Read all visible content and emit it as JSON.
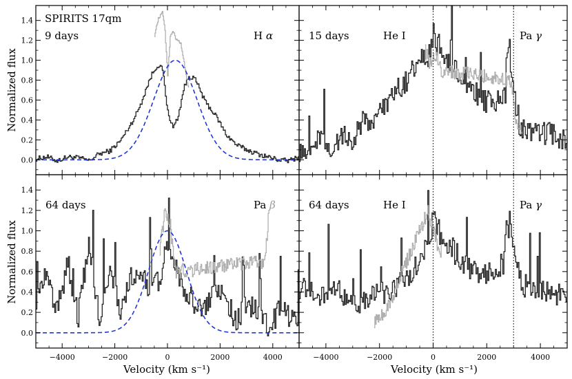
{
  "chart_data": {
    "type": "line",
    "title": "SPIRITS 17qm",
    "xlabel": "Velocity (km s⁻¹)",
    "ylabel": "Normalized flux",
    "xlim": [
      -5000,
      5000
    ],
    "ylim": [
      -0.15,
      1.55
    ],
    "xticks": [
      -4000,
      -2000,
      0,
      2000,
      4000
    ],
    "xtick_labels": [
      "−4000",
      "−2000",
      "0",
      "2000",
      "4000"
    ],
    "yticks": [
      0.0,
      0.2,
      0.4,
      0.6,
      0.8,
      1.0,
      1.2,
      1.4
    ],
    "ytick_labels": [
      "0.0",
      "0.2",
      "0.4",
      "0.6",
      "0.8",
      "1.0",
      "1.2",
      "1.4"
    ],
    "colors": {
      "spectrum": "#222222",
      "masked": "#b0b0b0",
      "fit": "#1f35d6"
    },
    "panels": [
      {
        "id": "top-left",
        "epoch": "9 days",
        "line": "H",
        "line_greek": "α",
        "line_greek_color": "#000000",
        "show_title": true,
        "fit": {
          "amplitude": 1.0,
          "center": 300,
          "sigma": 820
        },
        "markers": [],
        "spectrum": {
          "x": [
            -5000,
            -4600,
            -4200,
            -3800,
            -3400,
            -3000,
            -2600,
            -2200,
            -1800,
            -1400,
            -1200,
            -1000,
            -800,
            -600,
            -400,
            -200,
            0,
            200,
            400,
            600,
            800,
            1000,
            1200,
            1400,
            1600,
            1800,
            2000,
            2200,
            2600,
            3000,
            3400,
            3800,
            4200,
            4600,
            5000
          ],
          "y": [
            0.01,
            0.03,
            -0.01,
            0.03,
            0.02,
            -0.01,
            0.06,
            0.09,
            0.19,
            0.36,
            0.46,
            0.58,
            0.73,
            0.86,
            0.95,
            0.91,
            0.48,
            0.32,
            0.44,
            0.71,
            0.84,
            0.82,
            0.72,
            0.59,
            0.52,
            0.45,
            0.36,
            0.26,
            0.15,
            0.1,
            0.06,
            0.03,
            0.0,
            -0.01,
            0.03
          ]
        },
        "masked": {
          "x": [
            -500,
            -350,
            -200,
            -100,
            0,
            100,
            200,
            300,
            400,
            500,
            600,
            700,
            800
          ],
          "y": [
            1.25,
            1.42,
            1.48,
            1.3,
            0.85,
            1.24,
            1.3,
            1.22,
            1.2,
            1.17,
            1.02,
            0.85,
            0.72
          ]
        }
      },
      {
        "id": "top-right",
        "epoch": "15 days",
        "line": "He I",
        "line_greek": "",
        "show_title": false,
        "second_line": "Pa",
        "second_greek": "γ",
        "fit": null,
        "markers": [
          0,
          3000
        ],
        "spectrum": {
          "x": [
            -5000,
            -4600,
            -4200,
            -3800,
            -3400,
            -3000,
            -2600,
            -2200,
            -1800,
            -1400,
            -1000,
            -600,
            -200,
            0,
            200,
            600,
            1000,
            1400,
            1800,
            2200,
            2600,
            2800,
            3000,
            3200,
            3600,
            4000,
            4400,
            4800,
            5000
          ],
          "y": [
            0.1,
            0.15,
            0.22,
            0.12,
            0.25,
            0.18,
            0.4,
            0.38,
            0.55,
            0.7,
            0.8,
            0.95,
            1.05,
            1.2,
            1.15,
            1.0,
            0.85,
            0.7,
            0.62,
            0.55,
            0.62,
            1.2,
            0.7,
            0.35,
            0.3,
            0.28,
            0.25,
            0.22,
            0.2
          ]
        },
        "masked": {
          "x": [
            -300,
            -100,
            100,
            300,
            2900,
            3100,
            3300
          ],
          "y": [
            1.1,
            0.95,
            1.05,
            0.9,
            0.8,
            0.35,
            0.28
          ]
        }
      },
      {
        "id": "bottom-left",
        "epoch": "64 days",
        "line": "Pa",
        "line_greek": "β",
        "line_greek_color": "#9a9a9a",
        "show_title": false,
        "fit": {
          "amplitude": 1.0,
          "center": 0,
          "sigma": 720
        },
        "markers": [],
        "spectrum": {
          "x": [
            -5000,
            -4600,
            -4200,
            -3800,
            -3400,
            -3000,
            -2600,
            -2200,
            -1800,
            -1400,
            -1000,
            -600,
            -200,
            0,
            200,
            600,
            1000,
            1400,
            1800,
            2200,
            2600,
            3000,
            3400,
            3800,
            4200,
            4600,
            5000
          ],
          "y": [
            0.35,
            0.55,
            0.2,
            0.7,
            0.15,
            0.9,
            0.1,
            0.6,
            0.25,
            0.5,
            0.55,
            0.4,
            0.6,
            1.0,
            0.7,
            0.4,
            0.3,
            0.2,
            0.45,
            0.35,
            0.1,
            0.3,
            0.2,
            0.05,
            0.25,
            0.15,
            0.1
          ]
        },
        "masked": {
          "x": [
            -300,
            -100,
            100,
            300,
            3700,
            3850
          ],
          "y": [
            0.8,
            1.2,
            1.05,
            0.6,
            0.7,
            1.2
          ]
        }
      },
      {
        "id": "bottom-right",
        "epoch": "64 days",
        "line": "He I",
        "line_greek": "",
        "show_title": false,
        "second_line": "Pa",
        "second_greek": "γ",
        "fit": null,
        "markers": [
          0,
          3000
        ],
        "spectrum": {
          "x": [
            -5000,
            -4600,
            -4200,
            -3800,
            -3400,
            -3000,
            -2600,
            -2200,
            -1800,
            -1400,
            -1000,
            -600,
            -200,
            0,
            200,
            600,
            1000,
            1400,
            1800,
            2200,
            2600,
            2800,
            3000,
            3200,
            3600,
            4000,
            4400,
            4800,
            5000
          ],
          "y": [
            0.45,
            0.4,
            0.35,
            0.42,
            0.38,
            0.3,
            0.28,
            0.35,
            0.4,
            0.45,
            0.55,
            0.65,
            0.85,
            1.15,
            1.0,
            0.85,
            0.72,
            0.62,
            0.55,
            0.62,
            0.68,
            1.2,
            0.9,
            0.5,
            0.42,
            0.45,
            0.4,
            0.35,
            0.33
          ]
        },
        "masked": {
          "x": [
            -2200,
            -1700,
            -200,
            100,
            300
          ],
          "y": [
            0.1,
            0.25,
            1.2,
            0.9,
            0.8
          ]
        }
      }
    ]
  }
}
